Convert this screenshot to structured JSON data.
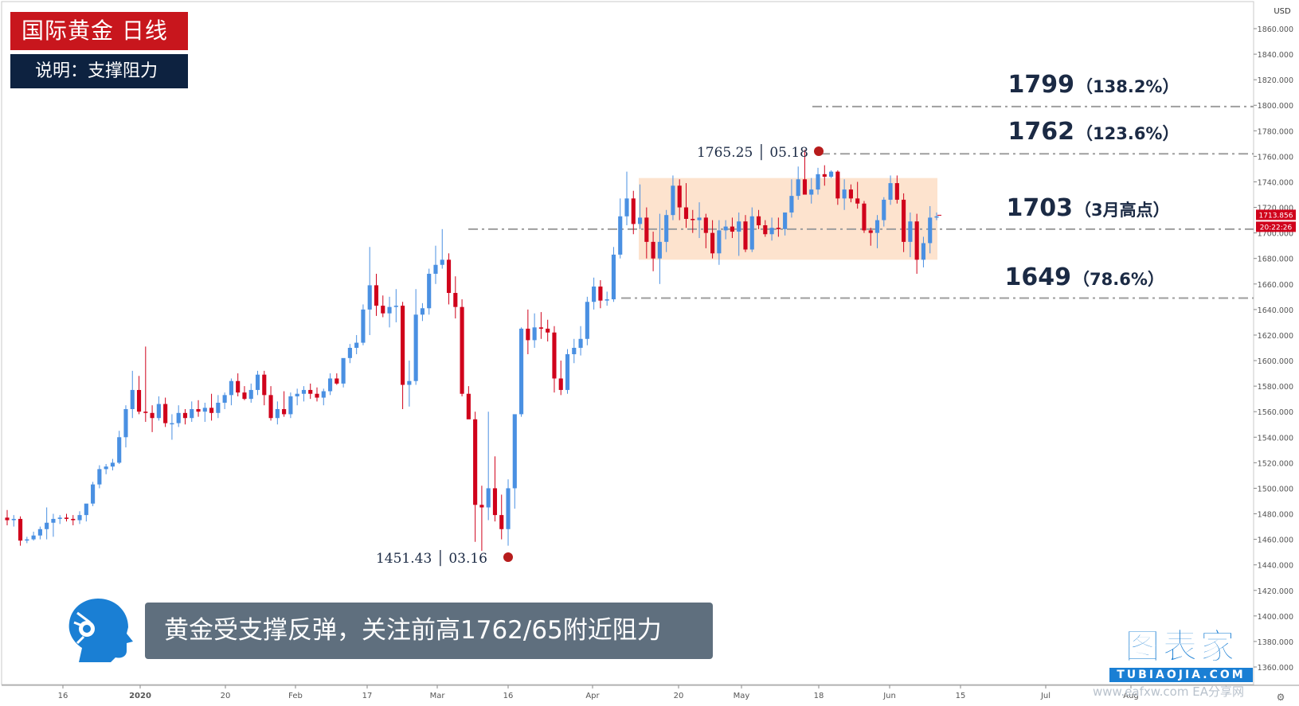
{
  "header": {
    "title": "国际黄金  日线",
    "subtitle": "说明：支撑阻力"
  },
  "banner": {
    "text": "黄金受支撑反弹，关注前高1762/65附近阻力"
  },
  "brand": {
    "name": "图表家",
    "domain": "TUBIAOJIA.COM",
    "watermark": "www.eafxw.com  EA分享网"
  },
  "colors": {
    "up": "#4a90e2",
    "down": "#d0021b",
    "level_line": "#9e9e9e",
    "range_box": "#fcd9bd",
    "marker": "#b71c1c",
    "price_tag": "#d0021b",
    "axis_text": "#555555"
  },
  "chart_data": {
    "type": "candlestick",
    "currency": "USD",
    "ylim": [
      1340,
      1880
    ],
    "y_ticks": [
      1360,
      1380,
      1400,
      1420,
      1440,
      1460,
      1480,
      1500,
      1520,
      1540,
      1560,
      1580,
      1600,
      1620,
      1640,
      1660,
      1680,
      1700,
      1720,
      1740,
      1760,
      1780,
      1800,
      1820,
      1840,
      1860
    ],
    "x_tick_labels": [
      "16",
      "2020",
      "20",
      "Feb",
      "17",
      "Mar",
      "16",
      "Apr",
      "20",
      "May",
      "18",
      "Jun",
      "15",
      "Jul",
      "Aug"
    ],
    "current_price": "1713.856",
    "countdown": "20:22:26",
    "levels": [
      {
        "price": 1799,
        "label": "1799",
        "note": "（138.2%）"
      },
      {
        "price": 1762,
        "label": "1762",
        "note": "（123.6%）"
      },
      {
        "price": 1703,
        "label": "1703",
        "note": "（3月高点）"
      },
      {
        "price": 1649,
        "label": "1649",
        "note": "（78.6%）"
      }
    ],
    "range_box": {
      "top": 1743,
      "bottom": 1679
    },
    "markers": [
      {
        "label": "1765.25 │ 05.18",
        "price": 1765.25,
        "date": "05.18"
      },
      {
        "label": "1451.43 │ 03.16",
        "price": 1451.43,
        "date": "03.16"
      }
    ],
    "candles": [
      {
        "o": 1477,
        "h": 1483,
        "l": 1471,
        "c": 1475
      },
      {
        "o": 1475,
        "h": 1479,
        "l": 1470,
        "c": 1476
      },
      {
        "o": 1476,
        "h": 1478,
        "l": 1455,
        "c": 1459
      },
      {
        "o": 1459,
        "h": 1462,
        "l": 1457,
        "c": 1460
      },
      {
        "o": 1460,
        "h": 1466,
        "l": 1459,
        "c": 1463
      },
      {
        "o": 1463,
        "h": 1470,
        "l": 1460,
        "c": 1468
      },
      {
        "o": 1468,
        "h": 1485,
        "l": 1460,
        "c": 1473
      },
      {
        "o": 1473,
        "h": 1480,
        "l": 1462,
        "c": 1476
      },
      {
        "o": 1476,
        "h": 1479,
        "l": 1472,
        "c": 1477
      },
      {
        "o": 1477,
        "h": 1480,
        "l": 1474,
        "c": 1476
      },
      {
        "o": 1476,
        "h": 1479,
        "l": 1471,
        "c": 1475
      },
      {
        "o": 1475,
        "h": 1482,
        "l": 1472,
        "c": 1479
      },
      {
        "o": 1479,
        "h": 1485,
        "l": 1474,
        "c": 1488
      },
      {
        "o": 1488,
        "h": 1505,
        "l": 1486,
        "c": 1503
      },
      {
        "o": 1503,
        "h": 1518,
        "l": 1500,
        "c": 1515
      },
      {
        "o": 1515,
        "h": 1519,
        "l": 1511,
        "c": 1517
      },
      {
        "o": 1517,
        "h": 1523,
        "l": 1514,
        "c": 1520
      },
      {
        "o": 1520,
        "h": 1545,
        "l": 1519,
        "c": 1540
      },
      {
        "o": 1540,
        "h": 1565,
        "l": 1532,
        "c": 1562
      },
      {
        "o": 1562,
        "h": 1592,
        "l": 1555,
        "c": 1577
      },
      {
        "o": 1577,
        "h": 1588,
        "l": 1558,
        "c": 1560
      },
      {
        "o": 1560,
        "h": 1611,
        "l": 1552,
        "c": 1559
      },
      {
        "o": 1559,
        "h": 1565,
        "l": 1544,
        "c": 1555
      },
      {
        "o": 1555,
        "h": 1572,
        "l": 1553,
        "c": 1566
      },
      {
        "o": 1566,
        "h": 1571,
        "l": 1548,
        "c": 1551
      },
      {
        "o": 1551,
        "h": 1558,
        "l": 1538,
        "c": 1551
      },
      {
        "o": 1551,
        "h": 1565,
        "l": 1548,
        "c": 1559
      },
      {
        "o": 1559,
        "h": 1562,
        "l": 1550,
        "c": 1555
      },
      {
        "o": 1555,
        "h": 1568,
        "l": 1552,
        "c": 1562
      },
      {
        "o": 1562,
        "h": 1569,
        "l": 1556,
        "c": 1560
      },
      {
        "o": 1560,
        "h": 1567,
        "l": 1552,
        "c": 1563
      },
      {
        "o": 1563,
        "h": 1574,
        "l": 1553,
        "c": 1559
      },
      {
        "o": 1559,
        "h": 1573,
        "l": 1555,
        "c": 1567
      },
      {
        "o": 1567,
        "h": 1575,
        "l": 1562,
        "c": 1573
      },
      {
        "o": 1573,
        "h": 1586,
        "l": 1565,
        "c": 1584
      },
      {
        "o": 1584,
        "h": 1590,
        "l": 1572,
        "c": 1575
      },
      {
        "o": 1575,
        "h": 1580,
        "l": 1569,
        "c": 1570
      },
      {
        "o": 1570,
        "h": 1582,
        "l": 1567,
        "c": 1577
      },
      {
        "o": 1577,
        "h": 1592,
        "l": 1573,
        "c": 1589
      },
      {
        "o": 1589,
        "h": 1592,
        "l": 1565,
        "c": 1573
      },
      {
        "o": 1573,
        "h": 1580,
        "l": 1553,
        "c": 1555
      },
      {
        "o": 1555,
        "h": 1568,
        "l": 1550,
        "c": 1562
      },
      {
        "o": 1562,
        "h": 1576,
        "l": 1556,
        "c": 1558
      },
      {
        "o": 1558,
        "h": 1575,
        "l": 1555,
        "c": 1572
      },
      {
        "o": 1572,
        "h": 1578,
        "l": 1565,
        "c": 1574
      },
      {
        "o": 1574,
        "h": 1580,
        "l": 1568,
        "c": 1577
      },
      {
        "o": 1577,
        "h": 1582,
        "l": 1570,
        "c": 1574
      },
      {
        "o": 1574,
        "h": 1579,
        "l": 1568,
        "c": 1571
      },
      {
        "o": 1571,
        "h": 1578,
        "l": 1565,
        "c": 1576
      },
      {
        "o": 1576,
        "h": 1590,
        "l": 1573,
        "c": 1586
      },
      {
        "o": 1586,
        "h": 1590,
        "l": 1581,
        "c": 1582
      },
      {
        "o": 1582,
        "h": 1601,
        "l": 1579,
        "c": 1602
      },
      {
        "o": 1602,
        "h": 1613,
        "l": 1598,
        "c": 1610
      },
      {
        "o": 1610,
        "h": 1620,
        "l": 1605,
        "c": 1614
      },
      {
        "o": 1614,
        "h": 1644,
        "l": 1612,
        "c": 1640
      },
      {
        "o": 1640,
        "h": 1689,
        "l": 1620,
        "c": 1659
      },
      {
        "o": 1659,
        "h": 1668,
        "l": 1635,
        "c": 1643
      },
      {
        "o": 1643,
        "h": 1651,
        "l": 1634,
        "c": 1637
      },
      {
        "o": 1637,
        "h": 1650,
        "l": 1626,
        "c": 1642
      },
      {
        "o": 1642,
        "h": 1656,
        "l": 1630,
        "c": 1643
      },
      {
        "o": 1643,
        "h": 1646,
        "l": 1562,
        "c": 1581
      },
      {
        "o": 1581,
        "h": 1600,
        "l": 1564,
        "c": 1584
      },
      {
        "o": 1584,
        "h": 1656,
        "l": 1581,
        "c": 1636
      },
      {
        "o": 1636,
        "h": 1645,
        "l": 1631,
        "c": 1641
      },
      {
        "o": 1641,
        "h": 1672,
        "l": 1636,
        "c": 1668
      },
      {
        "o": 1668,
        "h": 1690,
        "l": 1660,
        "c": 1675
      },
      {
        "o": 1675,
        "h": 1703,
        "l": 1672,
        "c": 1679
      },
      {
        "o": 1679,
        "h": 1684,
        "l": 1644,
        "c": 1653
      },
      {
        "o": 1653,
        "h": 1666,
        "l": 1633,
        "c": 1642
      },
      {
        "o": 1642,
        "h": 1648,
        "l": 1572,
        "c": 1574
      },
      {
        "o": 1574,
        "h": 1580,
        "l": 1555,
        "c": 1554
      },
      {
        "o": 1554,
        "h": 1560,
        "l": 1458,
        "c": 1487
      },
      {
        "o": 1487,
        "h": 1502,
        "l": 1451,
        "c": 1485
      },
      {
        "o": 1485,
        "h": 1560,
        "l": 1475,
        "c": 1500
      },
      {
        "o": 1500,
        "h": 1525,
        "l": 1474,
        "c": 1479
      },
      {
        "o": 1479,
        "h": 1495,
        "l": 1460,
        "c": 1468
      },
      {
        "o": 1468,
        "h": 1507,
        "l": 1455,
        "c": 1500
      },
      {
        "o": 1500,
        "h": 1556,
        "l": 1484,
        "c": 1558
      },
      {
        "o": 1558,
        "h": 1626,
        "l": 1556,
        "c": 1625
      },
      {
        "o": 1625,
        "h": 1640,
        "l": 1605,
        "c": 1616
      },
      {
        "o": 1616,
        "h": 1637,
        "l": 1610,
        "c": 1626
      },
      {
        "o": 1626,
        "h": 1638,
        "l": 1617,
        "c": 1625
      },
      {
        "o": 1625,
        "h": 1632,
        "l": 1615,
        "c": 1622
      },
      {
        "o": 1622,
        "h": 1627,
        "l": 1575,
        "c": 1586
      },
      {
        "o": 1586,
        "h": 1600,
        "l": 1573,
        "c": 1577
      },
      {
        "o": 1577,
        "h": 1609,
        "l": 1574,
        "c": 1605
      },
      {
        "o": 1605,
        "h": 1617,
        "l": 1598,
        "c": 1610
      },
      {
        "o": 1610,
        "h": 1627,
        "l": 1604,
        "c": 1617
      },
      {
        "o": 1617,
        "h": 1650,
        "l": 1612,
        "c": 1646
      },
      {
        "o": 1646,
        "h": 1665,
        "l": 1640,
        "c": 1658
      },
      {
        "o": 1658,
        "h": 1663,
        "l": 1641,
        "c": 1647
      },
      {
        "o": 1647,
        "h": 1654,
        "l": 1643,
        "c": 1648
      },
      {
        "o": 1648,
        "h": 1689,
        "l": 1646,
        "c": 1683
      },
      {
        "o": 1683,
        "h": 1727,
        "l": 1680,
        "c": 1713
      },
      {
        "o": 1713,
        "h": 1748,
        "l": 1706,
        "c": 1727
      },
      {
        "o": 1727,
        "h": 1733,
        "l": 1699,
        "c": 1707
      },
      {
        "o": 1707,
        "h": 1738,
        "l": 1703,
        "c": 1712
      },
      {
        "o": 1712,
        "h": 1720,
        "l": 1680,
        "c": 1693
      },
      {
        "o": 1693,
        "h": 1701,
        "l": 1670,
        "c": 1680
      },
      {
        "o": 1680,
        "h": 1715,
        "l": 1660,
        "c": 1693
      },
      {
        "o": 1693,
        "h": 1718,
        "l": 1685,
        "c": 1714
      },
      {
        "o": 1714,
        "h": 1745,
        "l": 1710,
        "c": 1737
      },
      {
        "o": 1737,
        "h": 1742,
        "l": 1710,
        "c": 1720
      },
      {
        "o": 1720,
        "h": 1739,
        "l": 1704,
        "c": 1711
      },
      {
        "o": 1711,
        "h": 1718,
        "l": 1700,
        "c": 1710
      },
      {
        "o": 1710,
        "h": 1724,
        "l": 1696,
        "c": 1712
      },
      {
        "o": 1712,
        "h": 1715,
        "l": 1688,
        "c": 1700
      },
      {
        "o": 1700,
        "h": 1710,
        "l": 1680,
        "c": 1684
      },
      {
        "o": 1684,
        "h": 1710,
        "l": 1675,
        "c": 1702
      },
      {
        "o": 1702,
        "h": 1710,
        "l": 1695,
        "c": 1705
      },
      {
        "o": 1705,
        "h": 1712,
        "l": 1696,
        "c": 1701
      },
      {
        "o": 1701,
        "h": 1716,
        "l": 1682,
        "c": 1709
      },
      {
        "o": 1709,
        "h": 1714,
        "l": 1685,
        "c": 1687
      },
      {
        "o": 1687,
        "h": 1720,
        "l": 1685,
        "c": 1713
      },
      {
        "o": 1713,
        "h": 1718,
        "l": 1703,
        "c": 1706
      },
      {
        "o": 1706,
        "h": 1710,
        "l": 1697,
        "c": 1699
      },
      {
        "o": 1699,
        "h": 1712,
        "l": 1694,
        "c": 1704
      },
      {
        "o": 1704,
        "h": 1712,
        "l": 1697,
        "c": 1703
      },
      {
        "o": 1703,
        "h": 1716,
        "l": 1698,
        "c": 1716
      },
      {
        "o": 1716,
        "h": 1742,
        "l": 1712,
        "c": 1729
      },
      {
        "o": 1729,
        "h": 1752,
        "l": 1726,
        "c": 1742
      },
      {
        "o": 1742,
        "h": 1765,
        "l": 1735,
        "c": 1730
      },
      {
        "o": 1730,
        "h": 1743,
        "l": 1723,
        "c": 1734
      },
      {
        "o": 1734,
        "h": 1751,
        "l": 1730,
        "c": 1746
      },
      {
        "o": 1746,
        "h": 1753,
        "l": 1737,
        "c": 1744
      },
      {
        "o": 1744,
        "h": 1749,
        "l": 1743,
        "c": 1748
      },
      {
        "o": 1748,
        "h": 1749,
        "l": 1722,
        "c": 1727
      },
      {
        "o": 1727,
        "h": 1742,
        "l": 1718,
        "c": 1734
      },
      {
        "o": 1734,
        "h": 1738,
        "l": 1724,
        "c": 1727
      },
      {
        "o": 1727,
        "h": 1740,
        "l": 1719,
        "c": 1723
      },
      {
        "o": 1723,
        "h": 1725,
        "l": 1700,
        "c": 1702
      },
      {
        "o": 1702,
        "h": 1704,
        "l": 1690,
        "c": 1700
      },
      {
        "o": 1700,
        "h": 1714,
        "l": 1688,
        "c": 1710
      },
      {
        "o": 1710,
        "h": 1728,
        "l": 1705,
        "c": 1726
      },
      {
        "o": 1726,
        "h": 1745,
        "l": 1722,
        "c": 1739
      },
      {
        "o": 1739,
        "h": 1745,
        "l": 1723,
        "c": 1726
      },
      {
        "o": 1726,
        "h": 1731,
        "l": 1685,
        "c": 1693
      },
      {
        "o": 1693,
        "h": 1716,
        "l": 1681,
        "c": 1709
      },
      {
        "o": 1709,
        "h": 1715,
        "l": 1668,
        "c": 1679
      },
      {
        "o": 1679,
        "h": 1697,
        "l": 1673,
        "c": 1692
      },
      {
        "o": 1692,
        "h": 1721,
        "l": 1684,
        "c": 1712
      },
      {
        "o": 1712,
        "h": 1716,
        "l": 1710,
        "c": 1713
      }
    ]
  }
}
